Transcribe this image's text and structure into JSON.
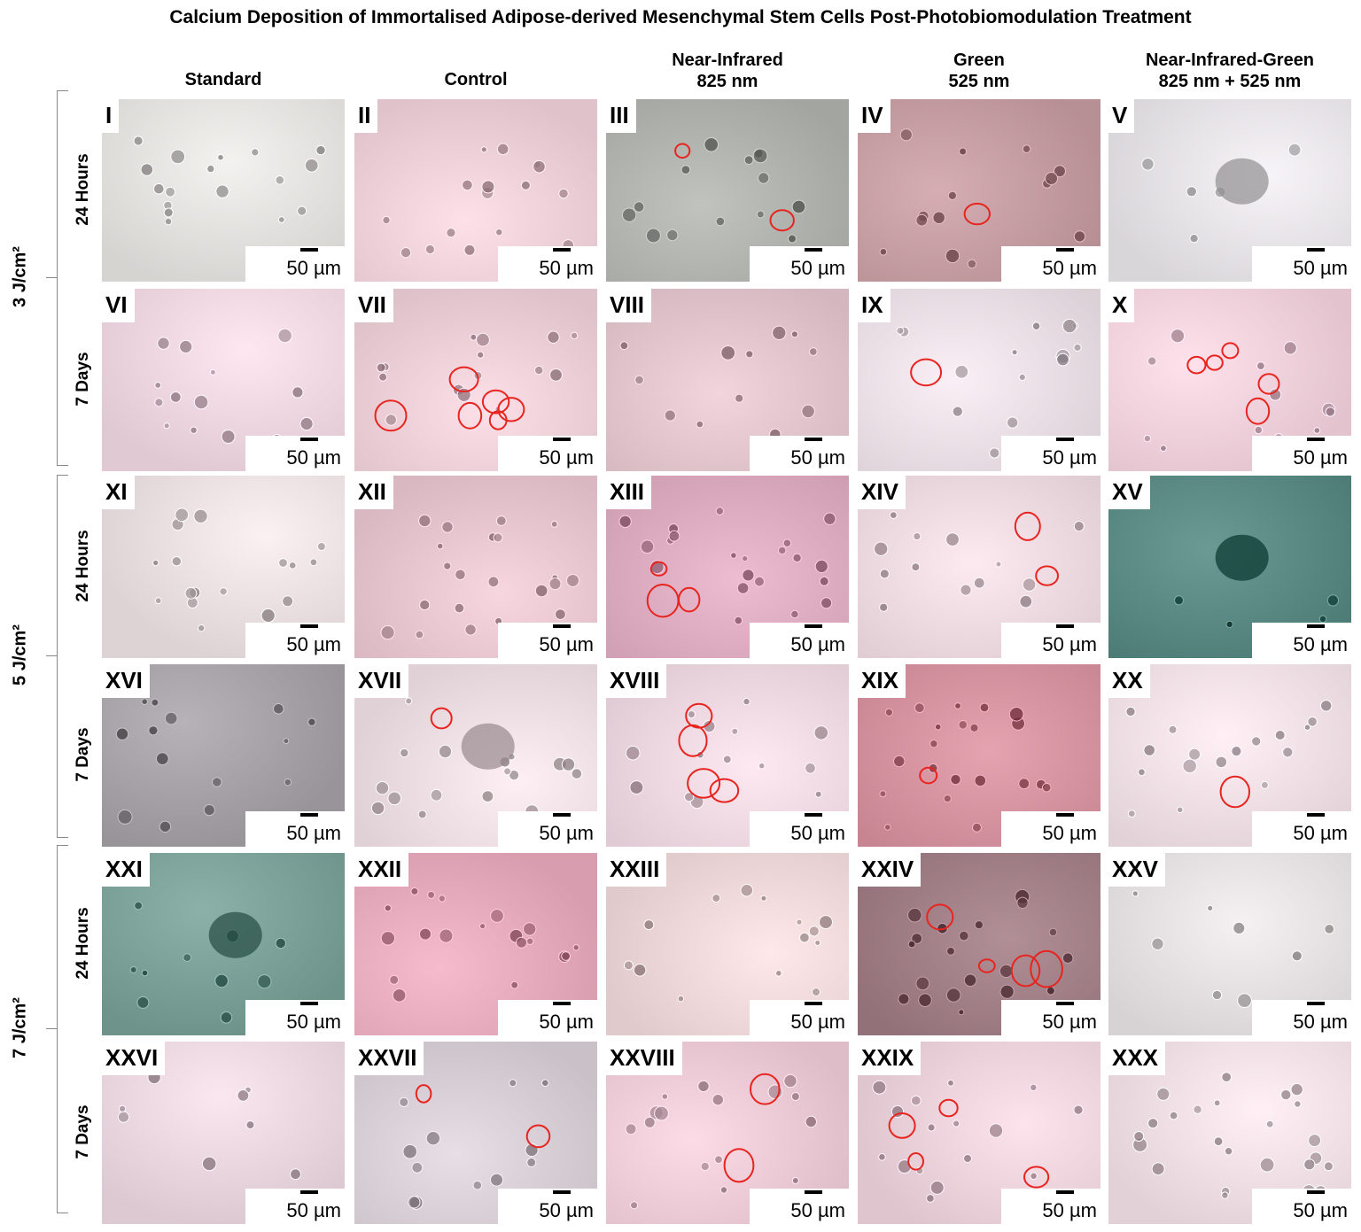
{
  "title": "Calcium Deposition of Immortalised Adipose-derived Mesenchymal Stem Cells Post-Photobiomodulation Treatment",
  "columns": [
    {
      "line1": "Standard",
      "line2": ""
    },
    {
      "line1": "Control",
      "line2": ""
    },
    {
      "line1": "Near-Infrared",
      "line2": "825 nm"
    },
    {
      "line1": "Green",
      "line2": "525 nm"
    },
    {
      "line1": "Near-Infrared-Green",
      "line2": "825 nm + 525 nm"
    }
  ],
  "doses": [
    "3 J/cm²",
    "5 J/cm²",
    "7 J/cm²"
  ],
  "times": [
    "24 Hours",
    "7 Days",
    "24 Hours",
    "7 Days",
    "24 Hours",
    "7 Days"
  ],
  "scale_label": "50 µm",
  "panels": [
    {
      "id": "I",
      "bg": "#e8e6e3",
      "cells": 18,
      "circles": 0
    },
    {
      "id": "II",
      "bg": "#f2d4dc",
      "cells": 16,
      "circles": 0
    },
    {
      "id": "III",
      "bg": "#b4b7b2",
      "cells": 14,
      "circles": 2
    },
    {
      "id": "IV",
      "bg": "#c9a2a8",
      "cells": 14,
      "circles": 1
    },
    {
      "id": "V",
      "bg": "#ebe8ec",
      "cells": 6,
      "circles": 0
    },
    {
      "id": "VI",
      "bg": "#f3dbe5",
      "cells": 14,
      "circles": 0
    },
    {
      "id": "VII",
      "bg": "#f1d3dc",
      "cells": 16,
      "circles": 6
    },
    {
      "id": "VIII",
      "bg": "#e6c9d0",
      "cells": 12,
      "circles": 0
    },
    {
      "id": "IX",
      "bg": "#efe3ea",
      "cells": 16,
      "circles": 1
    },
    {
      "id": "X",
      "bg": "#f4d5e0",
      "cells": 12,
      "circles": 5
    },
    {
      "id": "XI",
      "bg": "#efe4e6",
      "cells": 18,
      "circles": 0
    },
    {
      "id": "XII",
      "bg": "#eccad4",
      "cells": 22,
      "circles": 0
    },
    {
      "id": "XIII",
      "bg": "#e1b0c4",
      "cells": 22,
      "circles": 3
    },
    {
      "id": "XIV",
      "bg": "#f1dde4",
      "cells": 14,
      "circles": 2
    },
    {
      "id": "XV",
      "bg": "#5f8e88",
      "cells": 4,
      "circles": 0
    },
    {
      "id": "XVI",
      "bg": "#aaa6ab",
      "cells": 14,
      "circles": 0
    },
    {
      "id": "XVII",
      "bg": "#f1e3e7",
      "cells": 18,
      "circles": 1
    },
    {
      "id": "XVIII",
      "bg": "#f2dce5",
      "cells": 14,
      "circles": 4
    },
    {
      "id": "XIX",
      "bg": "#d996a3",
      "cells": 24,
      "circles": 1
    },
    {
      "id": "XX",
      "bg": "#f3e4ea",
      "cells": 18,
      "circles": 1
    },
    {
      "id": "XXI",
      "bg": "#7fa59d",
      "cells": 10,
      "circles": 0
    },
    {
      "id": "XXII",
      "bg": "#eab0c1",
      "cells": 20,
      "circles": 0
    },
    {
      "id": "XXIII",
      "bg": "#f2dcdd",
      "cells": 14,
      "circles": 0
    },
    {
      "id": "XXIV",
      "bg": "#a5838a",
      "cells": 22,
      "circles": 4
    },
    {
      "id": "XXV",
      "bg": "#e9e5e6",
      "cells": 8,
      "circles": 0
    },
    {
      "id": "XXVI",
      "bg": "#eedbe3",
      "cells": 8,
      "circles": 0
    },
    {
      "id": "XXVII",
      "bg": "#dcd2da",
      "cells": 12,
      "circles": 2
    },
    {
      "id": "XXVIII",
      "bg": "#f0cfda",
      "cells": 16,
      "circles": 2
    },
    {
      "id": "XXIX",
      "bg": "#f1d7e0",
      "cells": 16,
      "circles": 4
    },
    {
      "id": "XXX",
      "bg": "#f4e4ea",
      "cells": 26,
      "circles": 0
    }
  ]
}
